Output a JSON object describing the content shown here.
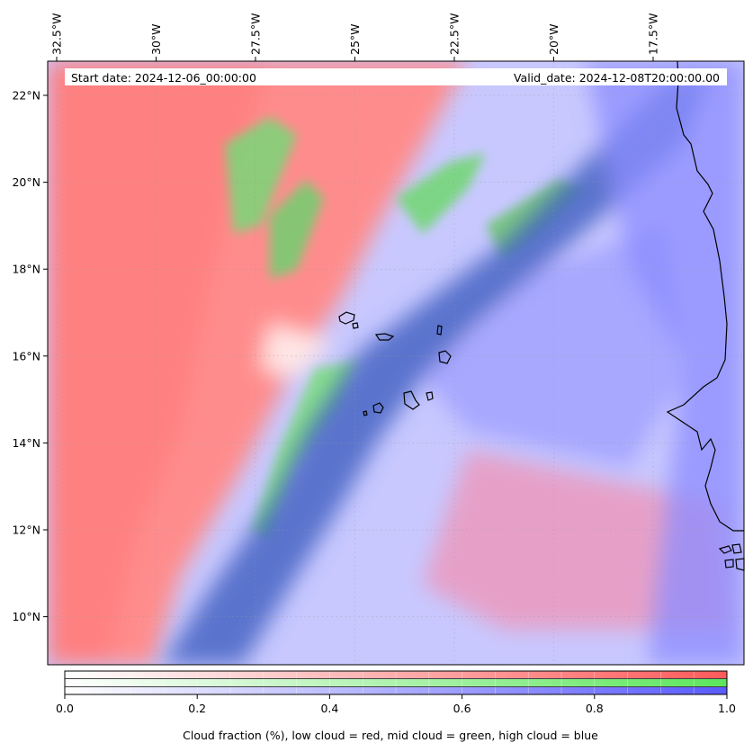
{
  "header": {
    "start_date": "Start date: 2024-12-06_00:00:00",
    "valid_date": "Valid_date: 2024-12-08T20:00:00.00"
  },
  "axes": {
    "lon_labels": [
      "32.5°W",
      "30°W",
      "27.5°W",
      "25°W",
      "22.5°W",
      "20°W",
      "17.5°W"
    ],
    "lon_values": [
      -32.5,
      -30,
      -27.5,
      -25,
      -22.5,
      -20,
      -17.5
    ],
    "lat_labels": [
      "22°N",
      "20°N",
      "18°N",
      "16°N",
      "14°N",
      "12°N",
      "10°N"
    ],
    "lat_values": [
      22,
      20,
      18,
      16,
      14,
      12,
      10
    ]
  },
  "colorbar": {
    "ticks": [
      "0.0",
      "0.2",
      "0.4",
      "0.6",
      "0.8",
      "1.0"
    ],
    "tick_values": [
      0,
      0.2,
      0.4,
      0.6,
      0.8,
      1.0
    ],
    "label": "Cloud fraction (%), low cloud = red, mid cloud = green, high cloud = blue",
    "colors": {
      "low": "#ff5a5a",
      "mid": "#5ce65c",
      "high": "#5a5aff"
    }
  },
  "layers": [
    {
      "name": "low cloud",
      "color": "#ff6b6b"
    },
    {
      "name": "mid cloud",
      "color": "#6be36b"
    },
    {
      "name": "high cloud",
      "color": "#6b6bff"
    }
  ]
}
